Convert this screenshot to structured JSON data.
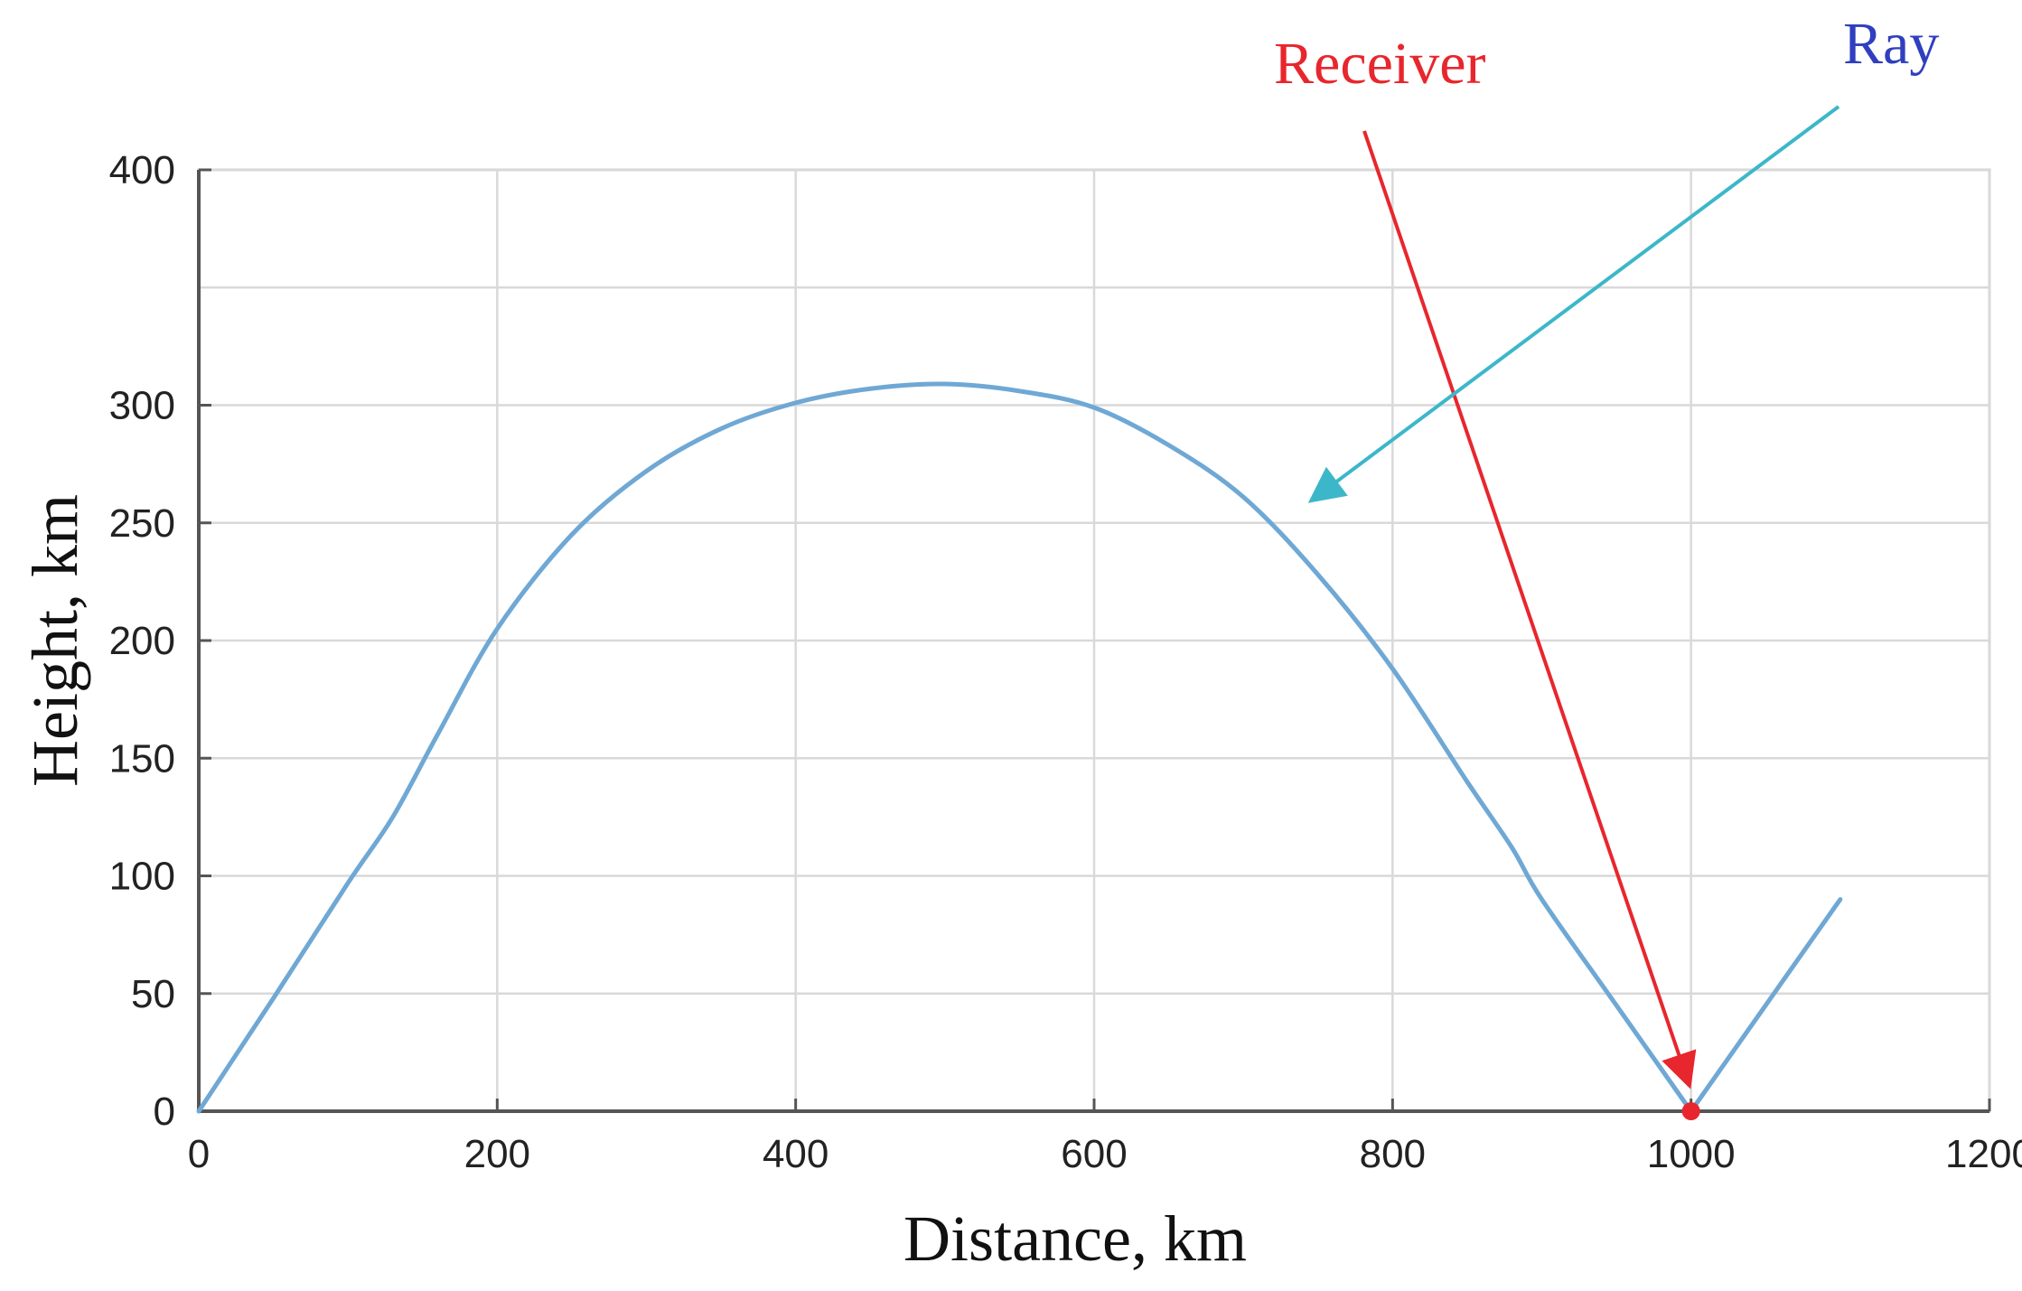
{
  "chart_data": {
    "type": "line",
    "title": "",
    "xlabel": "Distance, km",
    "ylabel": "Height, km",
    "xlim": [
      0,
      1200
    ],
    "ylim": [
      0,
      400
    ],
    "xticks": [
      0,
      200,
      400,
      600,
      800,
      1000,
      1200
    ],
    "yticks": [
      0,
      50,
      100,
      150,
      200,
      250,
      300,
      400
    ],
    "grid": true,
    "series": [
      {
        "color": "#6fa8d4",
        "x": [
          0,
          50,
          100,
          130,
          160,
          200,
          250,
          300,
          350,
          400,
          450,
          500,
          550,
          600,
          650,
          700,
          750,
          800,
          850,
          880,
          900,
          950,
          1000,
          1050,
          1100
        ],
        "y": [
          0,
          48,
          97,
          125,
          160,
          205,
          245,
          272,
          290,
          301,
          307,
          309,
          306,
          299,
          283,
          261,
          228,
          188,
          140,
          112,
          90,
          45,
          0,
          45,
          90
        ]
      }
    ],
    "annotations": [
      {
        "text": "Receiver",
        "color": "#e8262d",
        "arrow_color": "#e8262d",
        "target": [
          1000,
          0
        ]
      },
      {
        "text": "Ray",
        "color": "#2f3fbf",
        "arrow_color": "#3cb7c9",
        "target": [
          740,
          258
        ]
      }
    ],
    "receiver_marker": {
      "x": 1000,
      "y": 0,
      "color": "#e8262d"
    }
  }
}
